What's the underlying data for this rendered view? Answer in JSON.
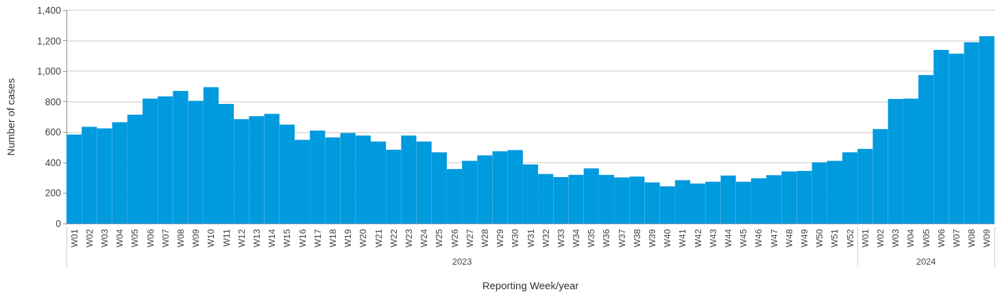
{
  "chart_data": {
    "type": "bar",
    "xlabel": "Reporting Week/year",
    "ylabel": "Number of cases",
    "color": "#009ade",
    "categories": [
      "W01",
      "W02",
      "W03",
      "W04",
      "W05",
      "W06",
      "W07",
      "W08",
      "W09",
      "W10",
      "W11",
      "W12",
      "W13",
      "W14",
      "W15",
      "W16",
      "W17",
      "W18",
      "W19",
      "W20",
      "W21",
      "W22",
      "W23",
      "W24",
      "W25",
      "W26",
      "W27",
      "W28",
      "W29",
      "W30",
      "W31",
      "W32",
      "W33",
      "W34",
      "W35",
      "W36",
      "W37",
      "W38",
      "W39",
      "W40",
      "W41",
      "W42",
      "W43",
      "W44",
      "W45",
      "W46",
      "W47",
      "W48",
      "W49",
      "W50",
      "W51",
      "W52",
      "W01",
      "W02",
      "W03",
      "W04",
      "W05",
      "W06",
      "W07",
      "W08",
      "W09"
    ],
    "values": [
      585,
      635,
      625,
      665,
      715,
      820,
      835,
      870,
      805,
      895,
      785,
      685,
      705,
      720,
      650,
      550,
      610,
      565,
      595,
      578,
      538,
      485,
      578,
      538,
      468,
      358,
      412,
      448,
      475,
      482,
      388,
      325,
      305,
      320,
      362,
      320,
      303,
      308,
      270,
      245,
      285,
      262,
      275,
      315,
      275,
      297,
      318,
      342,
      345,
      402,
      412,
      468,
      490,
      620,
      818,
      820,
      975,
      1140,
      1115,
      1190,
      1230
    ],
    "ylim": [
      0,
      1400
    ],
    "yticks": [
      0,
      200,
      400,
      600,
      800,
      {
        "value": 1000,
        "label": "1,000"
      },
      {
        "value": 1200,
        "label": "1,200"
      },
      {
        "value": 1400,
        "label": "1,400"
      }
    ],
    "grid": "y",
    "annotations": [
      "2023",
      "2024"
    ]
  }
}
